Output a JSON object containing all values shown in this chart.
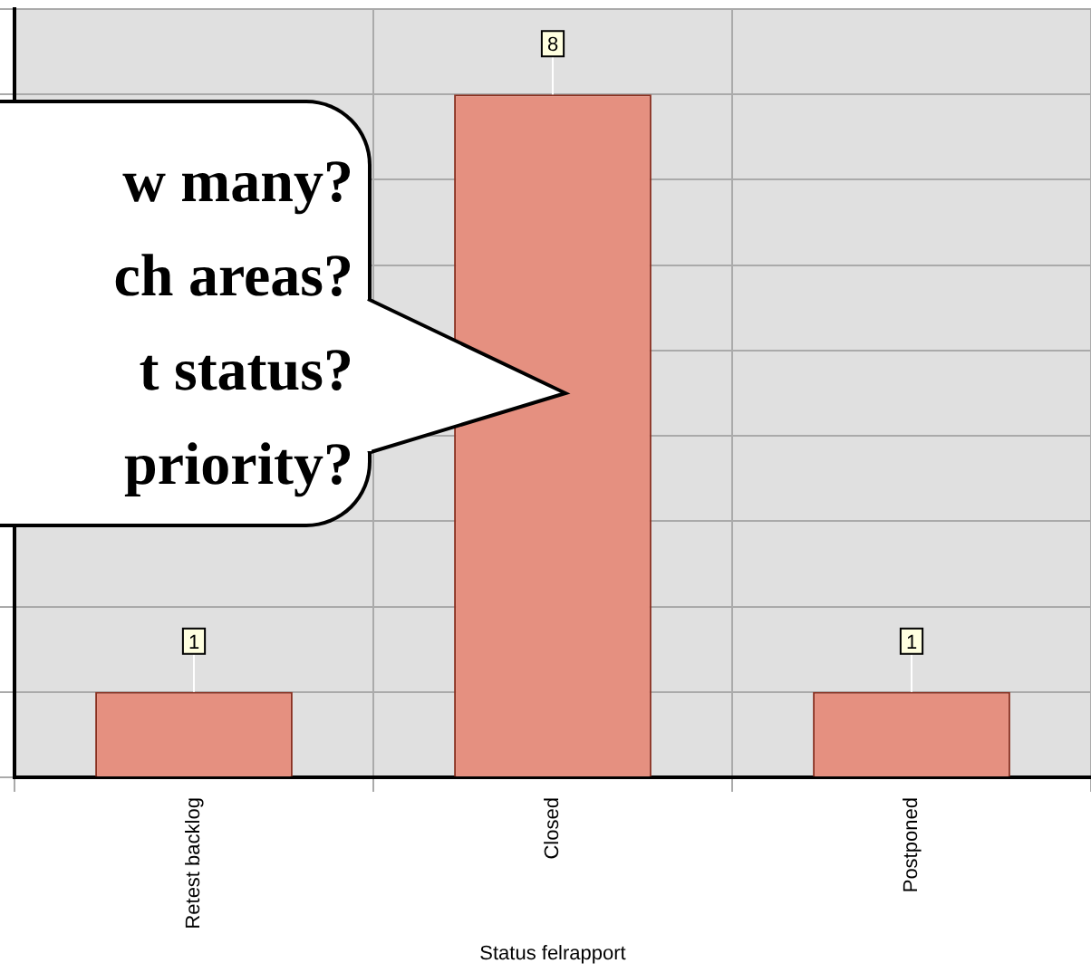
{
  "chart_data": {
    "type": "bar",
    "xlabel": "Status felrapport",
    "categories": [
      "Retest backlog",
      "Closed",
      "Postponed"
    ],
    "values": [
      1,
      8,
      1
    ],
    "color": "#e59080",
    "ylim": [
      0,
      9
    ],
    "yticks": [
      {
        "value": 0,
        "label": null
      },
      {
        "value": 1,
        "label": null
      },
      {
        "value": 2,
        "label": null
      },
      {
        "value": 3,
        "label": null
      },
      {
        "value": 4,
        "label": null
      },
      {
        "value": 5,
        "label": null
      },
      {
        "value": 6,
        "label": null
      },
      {
        "value": 7,
        "label": null
      },
      {
        "value": 8,
        "label": null
      },
      {
        "value": 9,
        "label": null
      }
    ],
    "tick_labels": "x",
    "grid": true,
    "data_labels": true,
    "annotations": [
      "w many?",
      "ch areas?",
      "t status?",
      "priority?"
    ]
  }
}
